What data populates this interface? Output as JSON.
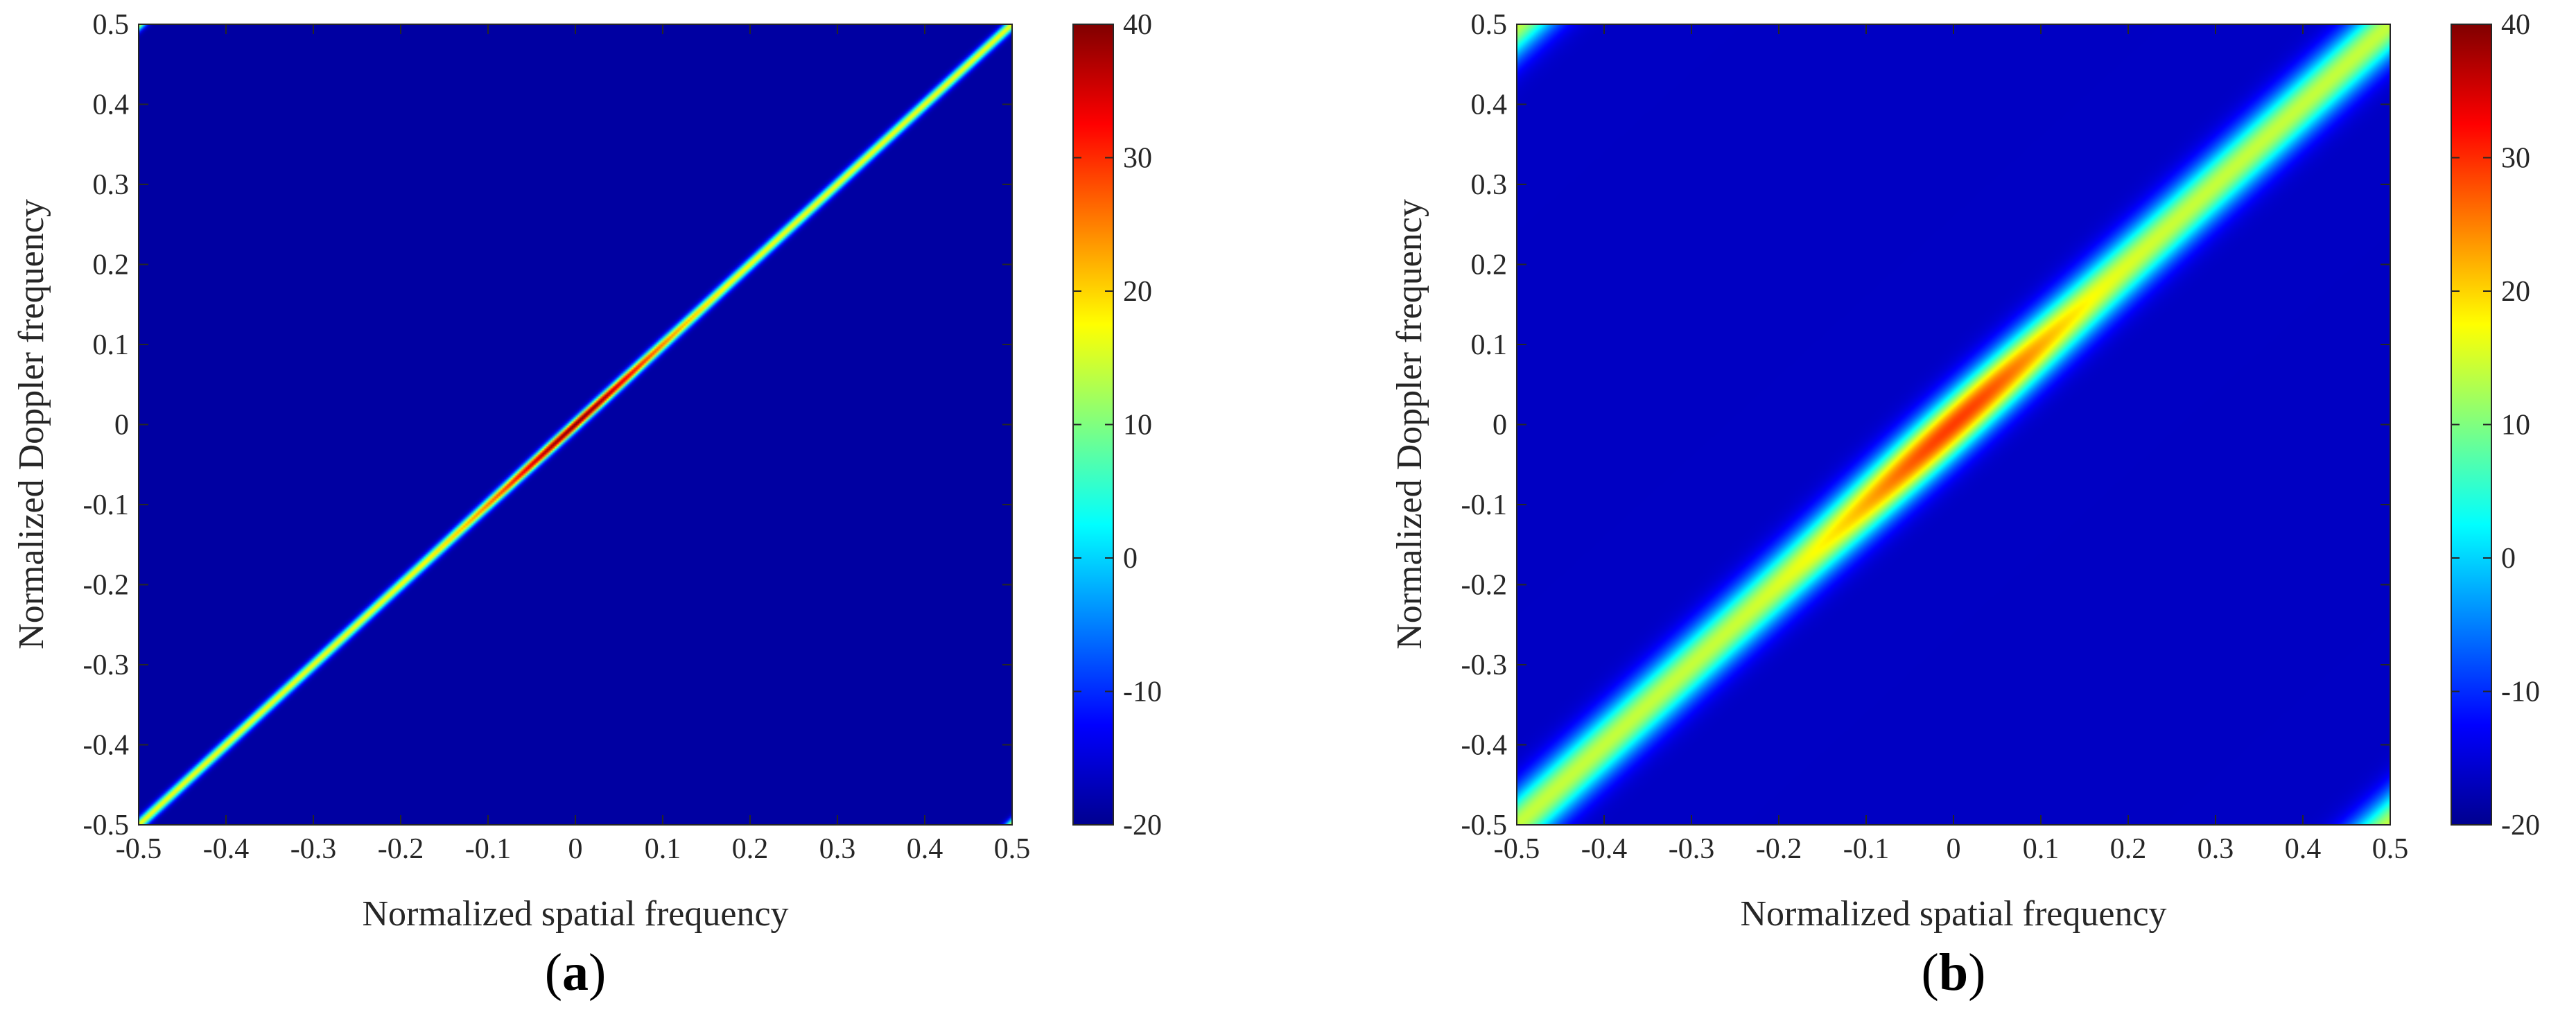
{
  "chart_data": [
    {
      "type": "heatmap",
      "caption_letter": "a",
      "caption_open": "(",
      "caption_close": ")",
      "title": "",
      "xlabel": "Normalized spatial frequency",
      "ylabel": "Normalized Doppler frequency",
      "xlim": [
        -0.5,
        0.5
      ],
      "ylim": [
        -0.5,
        0.5
      ],
      "x_ticks": [
        "-0.5",
        "-0.4",
        "-0.3",
        "-0.2",
        "-0.1",
        "0",
        "0.1",
        "0.2",
        "0.3",
        "0.4",
        "0.5"
      ],
      "y_ticks": [
        "0.5",
        "0.4",
        "0.3",
        "0.2",
        "0.1",
        "0",
        "-0.1",
        "-0.2",
        "-0.3",
        "-0.4",
        "-0.5"
      ],
      "colorbar_range": [
        -20,
        40
      ],
      "colorbar_ticks": [
        "40",
        "30",
        "20",
        "10",
        "0",
        "-10",
        "-20"
      ],
      "colormap": "jet",
      "ridge_slope": 1,
      "ridge_peak_db": 40,
      "ridge_level_db": 17,
      "background_db": -18,
      "ridge_width": 0.006,
      "peak_width": 0.1
    },
    {
      "type": "heatmap",
      "caption_letter": "b",
      "caption_open": "(",
      "caption_close": ")",
      "title": "",
      "xlabel": "Normalized spatial frequency",
      "ylabel": "Normalized Doppler frequency",
      "xlim": [
        -0.5,
        0.5
      ],
      "ylim": [
        -0.5,
        0.5
      ],
      "x_ticks": [
        "-0.5",
        "-0.4",
        "-0.3",
        "-0.2",
        "-0.1",
        "0",
        "0.1",
        "0.2",
        "0.3",
        "0.4",
        "0.5"
      ],
      "y_ticks": [
        "0.5",
        "0.4",
        "0.3",
        "0.2",
        "0.1",
        "0",
        "-0.1",
        "-0.2",
        "-0.3",
        "-0.4",
        "-0.5"
      ],
      "colorbar_range": [
        -20,
        40
      ],
      "colorbar_ticks": [
        "40",
        "30",
        "20",
        "10",
        "0",
        "-10",
        "-20"
      ],
      "colormap": "jet",
      "ridge_slope": 1,
      "ridge_peak_db": 29,
      "ridge_level_db": 14,
      "background_db": -16,
      "ridge_width": 0.03,
      "peak_width": 0.13
    }
  ]
}
